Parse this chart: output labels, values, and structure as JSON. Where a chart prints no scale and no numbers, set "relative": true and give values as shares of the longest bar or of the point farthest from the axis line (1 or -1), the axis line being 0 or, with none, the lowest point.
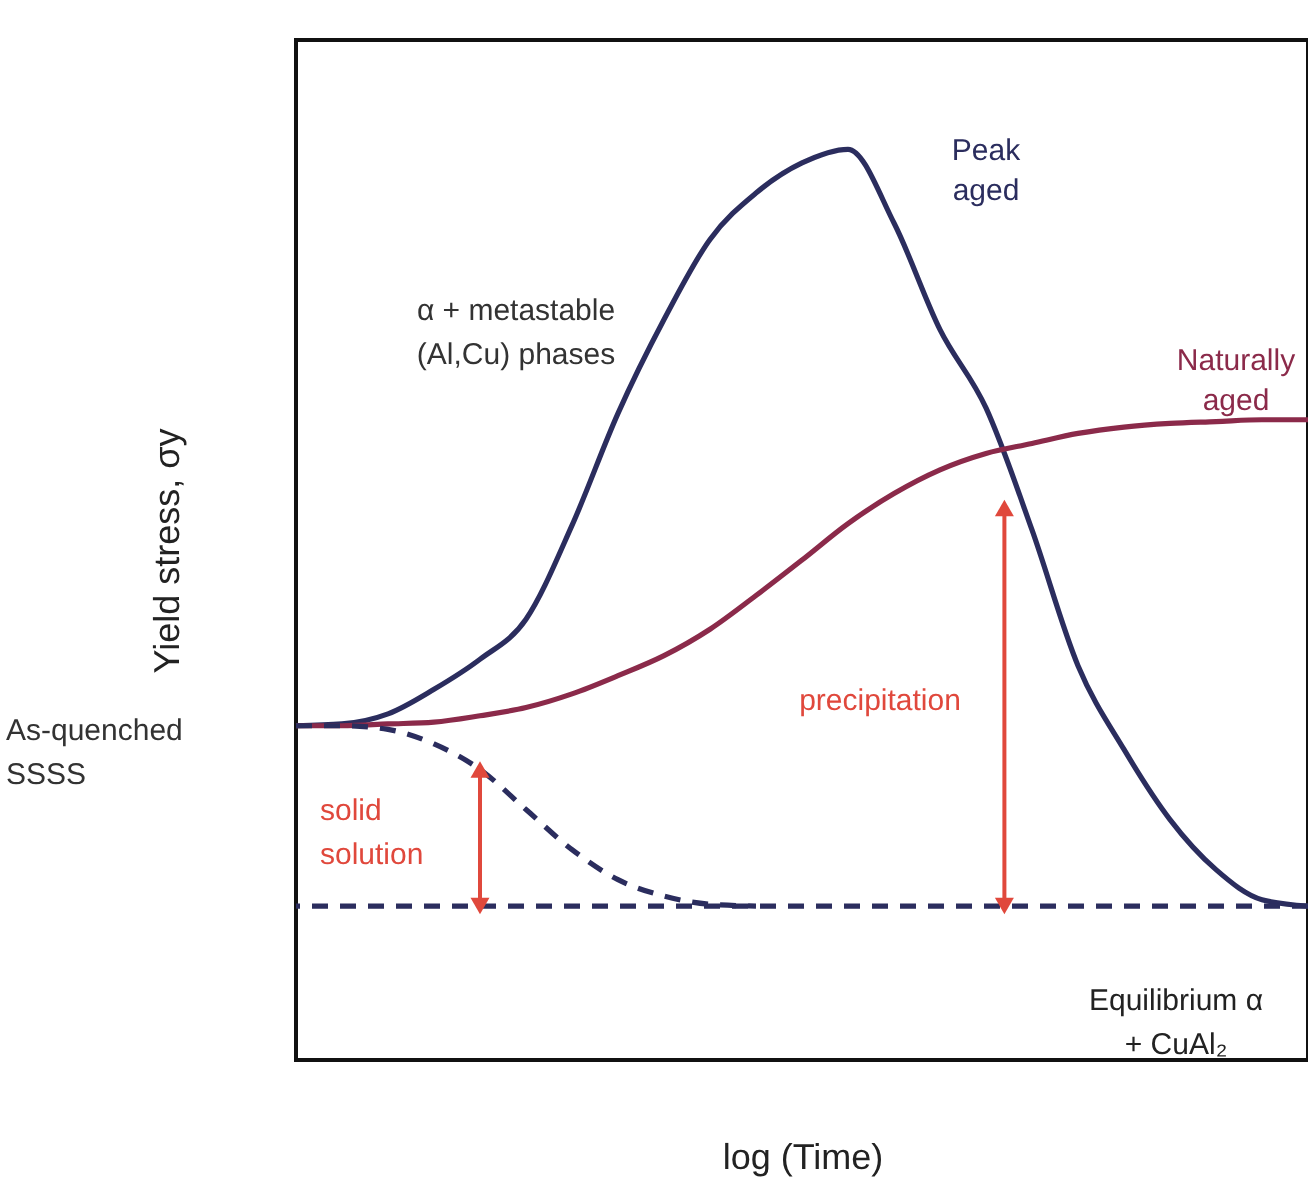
{
  "chart_data": {
    "type": "line",
    "relative": true,
    "xlabel": "log (Time)",
    "ylabel": "Yield stress, σy",
    "categories": [
      null,
      null,
      null,
      null,
      null,
      null,
      null,
      null,
      null,
      null,
      null,
      null,
      null,
      null,
      null,
      null,
      null,
      null,
      null,
      null,
      null,
      null,
      null
    ],
    "series": [
      {
        "name": "Peak\naged",
        "color": "#2b2d5e",
        "values": [
          0.367,
          0.369,
          0.38,
          0.407,
          0.44,
          0.484,
          0.587,
          0.71,
          0.813,
          0.901,
          0.952,
          0.985,
          1.0,
          0.919,
          0.802,
          0.716,
          0.582,
          0.433,
          0.341,
          0.264,
          0.209,
          0.176,
          0.169
        ]
      },
      {
        "name": "Naturally\naged",
        "color": "#8b2a4a",
        "values": [
          0.367,
          0.367,
          0.369,
          0.371,
          0.378,
          0.387,
          0.402,
          0.422,
          0.444,
          0.473,
          0.51,
          0.549,
          0.589,
          0.622,
          0.648,
          0.666,
          0.677,
          0.688,
          0.695,
          0.699,
          0.701,
          0.703,
          0.703
        ]
      },
      {
        "color": "#2b2d5e",
        "line_style": "dashed",
        "values": [
          0.367,
          0.367,
          0.363,
          0.347,
          0.319,
          0.275,
          0.231,
          0.198,
          0.18,
          0.171,
          0.169,
          null,
          null,
          null,
          null,
          null,
          null,
          null,
          null,
          null,
          null,
          null,
          null
        ]
      }
    ],
    "ref_lines": [
      {
        "axis": "y",
        "value": 0.169,
        "color": "#2b2d5e",
        "line_style": "dashed"
      }
    ],
    "annotations": [
      "α + metastable\n(Al,Cu) phases",
      "solid\nsolution",
      "precipitation",
      "Equilibrium α\n+ CuAl₂",
      "As-quenched\nSSSS"
    ],
    "marker": "none",
    "line_style": "solid"
  }
}
